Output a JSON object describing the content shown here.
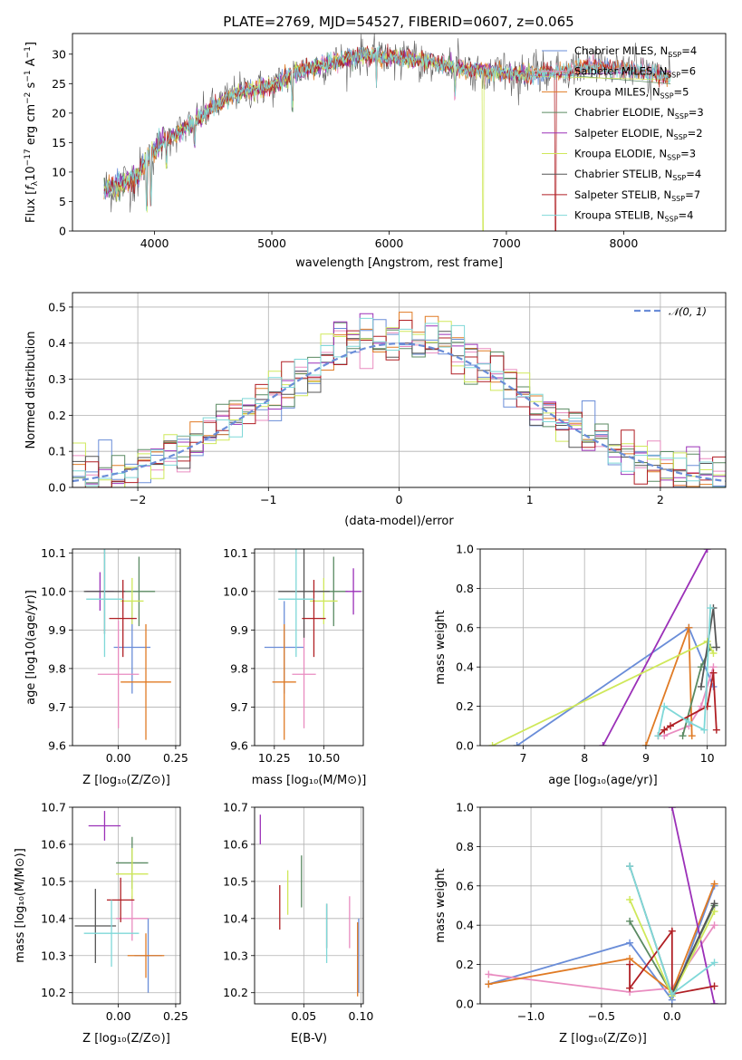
{
  "title": "PLATE=2769, MJD=54527, FIBERID=0607, z=0.065",
  "models": [
    {
      "name": "Chabrier MILES",
      "nssp": "4",
      "color": "#6a8dd8"
    },
    {
      "name": "Salpeter MILES",
      "nssp": "6",
      "color": "#e98cc0"
    },
    {
      "name": "Kroupa MILES",
      "nssp": "5",
      "color": "#e07b25"
    },
    {
      "name": "Chabrier ELODIE",
      "nssp": "3",
      "color": "#5a8a62"
    },
    {
      "name": "Salpeter ELODIE",
      "nssp": "2",
      "color": "#9b30b8"
    },
    {
      "name": "Kroupa ELODIE",
      "nssp": "3",
      "color": "#cfe85a"
    },
    {
      "name": "Chabrier STELIB",
      "nssp": "4",
      "color": "#555555"
    },
    {
      "name": "Salpeter STELIB",
      "nssp": "7",
      "color": "#b01f24"
    },
    {
      "name": "Kroupa STELIB",
      "nssp": "4",
      "color": "#7fd8d8"
    }
  ],
  "chart_data": [
    {
      "id": "spectrum",
      "type": "line",
      "xlabel": "wavelength [Angstrom, rest frame]",
      "ylabel": "Flux [f_λ 10^-17 erg cm^-2 s^-1 A^-1]",
      "xlim": [
        3300,
        8870
      ],
      "ylim": [
        0,
        33.5
      ],
      "xticks": [
        4000,
        5000,
        6000,
        7000,
        8000
      ],
      "yticks": [
        0,
        5,
        10,
        15,
        20,
        25,
        30
      ],
      "legend_position": "top-right",
      "continuum": [
        [
          3570,
          7
        ],
        [
          3700,
          8
        ],
        [
          3850,
          9
        ],
        [
          3950,
          13
        ],
        [
          4100,
          15.5
        ],
        [
          4300,
          18
        ],
        [
          4500,
          21
        ],
        [
          4700,
          23.5
        ],
        [
          5000,
          24.5
        ],
        [
          5200,
          27
        ],
        [
          5500,
          28.5
        ],
        [
          5800,
          30
        ],
        [
          6000,
          29.5
        ],
        [
          6300,
          29
        ],
        [
          6600,
          27.5
        ],
        [
          6900,
          27
        ],
        [
          7200,
          26.5
        ],
        [
          7500,
          27
        ],
        [
          7700,
          28
        ],
        [
          8000,
          27.5
        ],
        [
          8300,
          26.5
        ],
        [
          8400,
          26
        ]
      ],
      "absorption_features": [
        [
          3934,
          3
        ],
        [
          3968,
          4
        ],
        [
          4102,
          10
        ],
        [
          4340,
          14
        ],
        [
          5175,
          20
        ],
        [
          5892,
          24
        ],
        [
          6563,
          22
        ],
        [
          6800,
          0
        ],
        [
          7420,
          0
        ]
      ],
      "grid": false
    },
    {
      "id": "residual_hist",
      "type": "bar",
      "xlabel": "(data-model)/error",
      "ylabel": "Normed distribution",
      "xlim": [
        -2.5,
        2.5
      ],
      "ylim": [
        0,
        0.54
      ],
      "xticks": [
        -2,
        -1,
        0,
        1,
        2
      ],
      "yticks": [
        0.0,
        0.1,
        0.2,
        0.3,
        0.4,
        0.5
      ],
      "bin_width": 0.1,
      "reference_curve": "N(0,1)",
      "legend_entry": "𝒩(0, 1)",
      "legend_position": "top-right",
      "grid": true
    },
    {
      "id": "age_vs_Z",
      "type": "scatter",
      "xlabel": "Z [log10(Z/Z⊙)]",
      "ylabel": "age  [log10(age/yr)]",
      "xlim": [
        -0.2,
        0.27
      ],
      "ylim": [
        9.6,
        10.11
      ],
      "xticks": [
        -0.1,
        0.0,
        0.1,
        0.2
      ],
      "xticklabels": [
        "",
        "0.00",
        "",
        ""
      ],
      "xticklabels_drawn": [
        "0.00",
        "0.25"
      ],
      "yticks": [
        9.6,
        9.7,
        9.8,
        9.9,
        10.0,
        10.1
      ],
      "grid": true,
      "points": [
        {
          "model": 0,
          "x": 0.06,
          "xerr": 0.08,
          "y": 9.855,
          "yerr": 0.12
        },
        {
          "model": 1,
          "x": 0.0,
          "xerr": 0.09,
          "y": 9.785,
          "yerr": 0.14
        },
        {
          "model": 2,
          "x": 0.12,
          "xerr": 0.11,
          "y": 9.765,
          "yerr": 0.15
        },
        {
          "model": 3,
          "x": 0.09,
          "xerr": 0.07,
          "y": 10.0,
          "yerr": 0.09
        },
        {
          "model": 4,
          "x": -0.08,
          "xerr": 0.06,
          "y": 10.0,
          "yerr": 0.05
        },
        {
          "model": 5,
          "x": 0.06,
          "xerr": 0.05,
          "y": 9.975,
          "yerr": 0.06
        },
        {
          "model": 6,
          "x": -0.06,
          "xerr": 0.09,
          "y": 10.0,
          "yerr": 0.11
        },
        {
          "model": 7,
          "x": 0.02,
          "xerr": 0.06,
          "y": 9.93,
          "yerr": 0.1
        },
        {
          "model": 8,
          "x": -0.06,
          "xerr": 0.08,
          "y": 9.98,
          "yerr": 0.15
        }
      ]
    },
    {
      "id": "age_vs_mass",
      "type": "scatter",
      "xlabel": "mass [log10(M/M⊙)]",
      "ylabel": "",
      "xlim": [
        10.15,
        10.7
      ],
      "ylim": [
        9.6,
        10.11
      ],
      "xticks": [
        10.25,
        10.5
      ],
      "xticklabels": [
        "10.25",
        "10.50"
      ],
      "yticks": [
        9.6,
        9.7,
        9.8,
        9.9,
        10.0,
        10.1
      ],
      "grid": true,
      "points": [
        {
          "model": 0,
          "x": 10.3,
          "xerr": 0.1,
          "y": 9.855,
          "yerr": 0.12
        },
        {
          "model": 1,
          "x": 10.4,
          "xerr": 0.06,
          "y": 9.785,
          "yerr": 0.14
        },
        {
          "model": 2,
          "x": 10.3,
          "xerr": 0.06,
          "y": 9.765,
          "yerr": 0.15
        },
        {
          "model": 3,
          "x": 10.55,
          "xerr": 0.07,
          "y": 10.0,
          "yerr": 0.09
        },
        {
          "model": 4,
          "x": 10.65,
          "xerr": 0.04,
          "y": 10.0,
          "yerr": 0.06
        },
        {
          "model": 5,
          "x": 10.5,
          "xerr": 0.07,
          "y": 9.975,
          "yerr": 0.06
        },
        {
          "model": 6,
          "x": 10.4,
          "xerr": 0.13,
          "y": 10.0,
          "yerr": 0.12
        },
        {
          "model": 7,
          "x": 10.45,
          "xerr": 0.06,
          "y": 9.93,
          "yerr": 0.1
        },
        {
          "model": 8,
          "x": 10.36,
          "xerr": 0.09,
          "y": 9.98,
          "yerr": 0.15
        }
      ]
    },
    {
      "id": "massweight_vs_age",
      "type": "line",
      "xlabel": "age  [log10(age/yr)]",
      "ylabel": "mass weight",
      "xlim": [
        6.3,
        10.3
      ],
      "ylim": [
        0.0,
        1.0
      ],
      "xticks": [
        7,
        8,
        9,
        10
      ],
      "yticks": [
        0.0,
        0.2,
        0.4,
        0.6,
        0.8,
        1.0
      ],
      "grid": true,
      "series": [
        {
          "model": 0,
          "x": [
            6.9,
            9.7,
            10.1
          ],
          "y": [
            0.0,
            0.6,
            0.3
          ]
        },
        {
          "model": 1,
          "x": [
            9.3,
            9.7,
            9.9,
            10.1
          ],
          "y": [
            0.05,
            0.1,
            0.2,
            0.4
          ]
        },
        {
          "model": 2,
          "x": [
            9.0,
            9.7,
            9.75
          ],
          "y": [
            0.0,
            0.6,
            0.05
          ]
        },
        {
          "model": 3,
          "x": [
            9.6,
            9.9,
            10.05
          ],
          "y": [
            0.05,
            0.4,
            0.5
          ]
        },
        {
          "model": 4,
          "x": [
            8.3,
            10.0
          ],
          "y": [
            0.0,
            1.0
          ]
        },
        {
          "model": 5,
          "x": [
            6.5,
            10.0,
            10.1
          ],
          "y": [
            0.0,
            0.53,
            0.47
          ]
        },
        {
          "model": 6,
          "x": [
            9.9,
            10.1,
            10.15
          ],
          "y": [
            0.3,
            0.7,
            0.5
          ]
        },
        {
          "model": 7,
          "x": [
            9.2,
            9.3,
            9.4,
            10.0,
            10.1,
            10.15
          ],
          "y": [
            0.05,
            0.08,
            0.1,
            0.2,
            0.37,
            0.08
          ]
        },
        {
          "model": 8,
          "x": [
            9.2,
            9.3,
            9.7,
            9.95,
            10.05
          ],
          "y": [
            0.05,
            0.2,
            0.12,
            0.08,
            0.7
          ]
        }
      ]
    },
    {
      "id": "mass_vs_Z",
      "type": "scatter",
      "xlabel": "Z [log10(Z/Z⊙)]",
      "ylabel": "mass [log10(M/M⊙)]",
      "xlim": [
        -0.2,
        0.27
      ],
      "ylim": [
        10.17,
        10.7
      ],
      "xticks": [
        0.0,
        0.25
      ],
      "xticklabels": [
        "0.00",
        "0.25"
      ],
      "yticks": [
        10.2,
        10.3,
        10.4,
        10.5,
        10.6,
        10.7
      ],
      "grid": true,
      "points": [
        {
          "model": 0,
          "x": 0.13,
          "xerr": 0.06,
          "y": 10.3,
          "yerr": 0.1
        },
        {
          "model": 1,
          "x": 0.06,
          "xerr": 0.07,
          "y": 10.4,
          "yerr": 0.06
        },
        {
          "model": 2,
          "x": 0.12,
          "xerr": 0.08,
          "y": 10.3,
          "yerr": 0.06
        },
        {
          "model": 3,
          "x": 0.06,
          "xerr": 0.07,
          "y": 10.55,
          "yerr": 0.07
        },
        {
          "model": 4,
          "x": -0.06,
          "xerr": 0.07,
          "y": 10.65,
          "yerr": 0.04
        },
        {
          "model": 5,
          "x": 0.06,
          "xerr": 0.07,
          "y": 10.52,
          "yerr": 0.07
        },
        {
          "model": 6,
          "x": -0.1,
          "xerr": 0.09,
          "y": 10.38,
          "yerr": 0.1
        },
        {
          "model": 7,
          "x": 0.01,
          "xerr": 0.06,
          "y": 10.45,
          "yerr": 0.06
        },
        {
          "model": 8,
          "x": -0.03,
          "xerr": 0.12,
          "y": 10.36,
          "yerr": 0.09
        }
      ]
    },
    {
      "id": "mass_vs_EBV",
      "type": "scatter",
      "xlabel": "E(B-V)",
      "ylabel": "",
      "xlim": [
        0.007,
        0.102
      ],
      "ylim": [
        10.17,
        10.7
      ],
      "xticks": [
        0.05,
        0.1
      ],
      "xticklabels": [
        "0.05",
        "0.10"
      ],
      "yticks": [
        10.2,
        10.3,
        10.4,
        10.5,
        10.6,
        10.7
      ],
      "grid": true,
      "points": [
        {
          "model": 0,
          "x": 0.098,
          "y": 10.3,
          "yerr": 0.1
        },
        {
          "model": 1,
          "x": 0.09,
          "y": 10.39,
          "yerr": 0.07
        },
        {
          "model": 2,
          "x": 0.097,
          "y": 10.29,
          "yerr": 0.1
        },
        {
          "model": 3,
          "x": 0.048,
          "y": 10.5,
          "yerr": 0.07
        },
        {
          "model": 4,
          "x": 0.012,
          "y": 10.64,
          "yerr": 0.04
        },
        {
          "model": 5,
          "x": 0.036,
          "y": 10.47,
          "yerr": 0.06
        },
        {
          "model": 6,
          "x": 0.07,
          "y": 10.38,
          "yerr": 0.06
        },
        {
          "model": 7,
          "x": 0.029,
          "y": 10.43,
          "yerr": 0.06
        },
        {
          "model": 8,
          "x": 0.07,
          "y": 10.36,
          "yerr": 0.08
        }
      ]
    },
    {
      "id": "massweight_vs_Z",
      "type": "line",
      "xlabel": "Z [log10(Z/Z⊙)]",
      "ylabel": "mass weight",
      "xlim": [
        -1.36,
        0.38
      ],
      "ylim": [
        0.0,
        1.0
      ],
      "xticks": [
        -1.0,
        -0.5,
        0.0
      ],
      "xticklabels": [
        "−1.0",
        "−0.5",
        "0.0"
      ],
      "yticks": [
        0.0,
        0.2,
        0.4,
        0.6,
        0.8,
        1.0
      ],
      "grid": true,
      "series": [
        {
          "model": 0,
          "x": [
            -1.3,
            -0.3,
            0.0,
            0.3
          ],
          "y": [
            0.1,
            0.31,
            0.02,
            0.6
          ]
        },
        {
          "model": 1,
          "x": [
            -1.3,
            -0.3,
            0.0,
            0.3
          ],
          "y": [
            0.15,
            0.06,
            0.08,
            0.4
          ]
        },
        {
          "model": 2,
          "x": [
            -1.3,
            -0.3,
            0.0,
            0.3
          ],
          "y": [
            0.1,
            0.23,
            0.06,
            0.61
          ]
        },
        {
          "model": 3,
          "x": [
            -0.3,
            0.0,
            0.3
          ],
          "y": [
            0.42,
            0.05,
            0.5
          ]
        },
        {
          "model": 4,
          "x": [
            0.0,
            0.3
          ],
          "y": [
            1.0,
            0.0
          ]
        },
        {
          "model": 5,
          "x": [
            -0.3,
            0.0,
            0.3
          ],
          "y": [
            0.53,
            0.04,
            0.47
          ]
        },
        {
          "model": 6,
          "x": [
            -0.3,
            0.0,
            0.3
          ],
          "y": [
            0.7,
            0.05,
            0.51
          ]
        },
        {
          "model": 7,
          "x": [
            -0.3,
            -0.3,
            0.0,
            0.0,
            0.3
          ],
          "y": [
            0.2,
            0.08,
            0.37,
            0.05,
            0.09
          ]
        },
        {
          "model": 8,
          "x": [
            -0.3,
            0.0,
            0.3
          ],
          "y": [
            0.7,
            0.05,
            0.21
          ]
        }
      ]
    }
  ]
}
